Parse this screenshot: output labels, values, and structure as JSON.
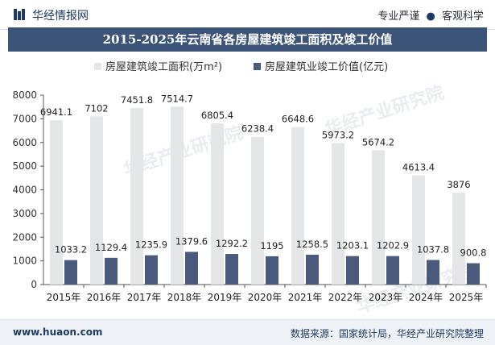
{
  "header": {
    "brand": "华经情报网",
    "tagline_left": "专业严谨",
    "tagline_sep": "●",
    "tagline_right": "客观科学"
  },
  "footer": {
    "url": "www.huaon.com",
    "source": "数据来源：国家统计局，华经产业研究院整理"
  },
  "watermark_text": "华经产业研究院",
  "colors": {
    "title_bg": "#3c5478",
    "series_area": "#e4e5e7",
    "series_value": "#4a5a7c",
    "axis": "#555555"
  },
  "chart_data": {
    "type": "bar",
    "title": "2015-2025年云南省各房屋建筑竣工面积及竣工价值",
    "categories": [
      "2015年",
      "2016年",
      "2017年",
      "2018年",
      "2019年",
      "2020年",
      "2021年",
      "2022年",
      "2023年",
      "2024年",
      "2025年"
    ],
    "series": [
      {
        "name": "房屋建筑竣工面积(万m²)",
        "values": [
          6941.1,
          7102,
          7451.8,
          7514.7,
          6805.4,
          6238.4,
          6648.6,
          5973.2,
          5674.2,
          4613.4,
          3876
        ]
      },
      {
        "name": "房屋建筑业竣工价值(亿元)",
        "values": [
          1033.2,
          1129.4,
          1235.9,
          1379.6,
          1292.2,
          1195,
          1258.5,
          1203.1,
          1202.9,
          1037.8,
          900.8
        ]
      }
    ],
    "ylim": [
      0,
      8000
    ],
    "yticks": [
      0,
      1000,
      2000,
      3000,
      4000,
      5000,
      6000,
      7000,
      8000
    ],
    "grid": false,
    "legend_position": "top"
  }
}
